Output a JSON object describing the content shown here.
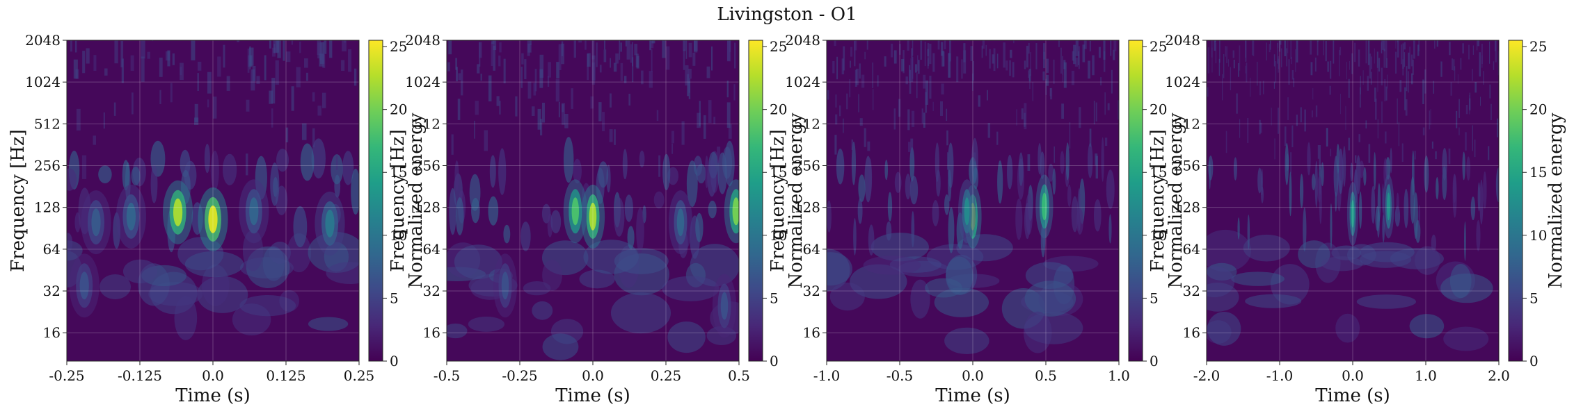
{
  "figure": {
    "title": "Livingston - O1"
  },
  "colormap": {
    "name": "viridis",
    "stops": [
      "#440154",
      "#482878",
      "#3e4a89",
      "#31688e",
      "#26828e",
      "#1f9e89",
      "#35b779",
      "#6ece58",
      "#b5de2b",
      "#fde725"
    ]
  },
  "chart_data": [
    {
      "type": "heatmap",
      "panel": 1,
      "xlabel": "Time (s)",
      "ylabel": "Frequency [Hz]",
      "colorbar_label": "Normalized energy",
      "xlim": [
        -0.25,
        0.25
      ],
      "xticks": [
        -0.25,
        -0.125,
        0,
        0.125,
        0.25
      ],
      "xtick_labels": [
        "-0.25",
        "-0.125",
        "0.0",
        "0.125",
        "0.25"
      ],
      "yscale": "log2",
      "ylim": [
        10,
        2048
      ],
      "yticks": [
        16,
        32,
        64,
        128,
        256,
        512,
        1024,
        2048
      ],
      "ytick_labels": [
        "16",
        "32",
        "64",
        "128",
        "256",
        "512",
        "1024",
        "2048"
      ],
      "clim": [
        0,
        25.5
      ],
      "cticks": [
        0,
        5,
        10,
        15,
        20,
        25
      ],
      "ctick_labels": [
        "0",
        "5",
        "10",
        "15",
        "20",
        "25"
      ],
      "grid": true,
      "features": [
        {
          "t": 0.0,
          "f": 105,
          "energy": 24
        },
        {
          "t": -0.06,
          "f": 118,
          "energy": 22
        },
        {
          "t": 0.2,
          "f": 98,
          "energy": 10
        },
        {
          "t": -0.14,
          "f": 110,
          "energy": 8
        },
        {
          "t": 0.07,
          "f": 120,
          "energy": 8
        },
        {
          "t": -0.2,
          "f": 100,
          "energy": 7
        },
        {
          "t": -0.22,
          "f": 35,
          "energy": 6
        }
      ]
    },
    {
      "type": "heatmap",
      "panel": 2,
      "xlabel": "Time (s)",
      "ylabel": "Frequency [Hz]",
      "colorbar_label": "Normalized energy",
      "xlim": [
        -0.5,
        0.5
      ],
      "xticks": [
        -0.5,
        -0.25,
        0,
        0.25,
        0.5
      ],
      "xtick_labels": [
        "-0.5",
        "-0.25",
        "0.0",
        "0.25",
        "0.5"
      ],
      "yscale": "log2",
      "ylim": [
        10,
        2048
      ],
      "yticks": [
        16,
        32,
        64,
        128,
        256,
        512,
        1024,
        2048
      ],
      "ytick_labels": [
        "16",
        "32",
        "64",
        "128",
        "256",
        "512",
        "1024",
        "2048"
      ],
      "clim": [
        0,
        25.5
      ],
      "cticks": [
        0,
        5,
        10,
        15,
        20,
        25
      ],
      "ctick_labels": [
        "0",
        "5",
        "10",
        "15",
        "20",
        "25"
      ],
      "grid": true,
      "features": [
        {
          "t": 0.0,
          "f": 110,
          "energy": 22
        },
        {
          "t": -0.06,
          "f": 120,
          "energy": 18
        },
        {
          "t": 0.49,
          "f": 120,
          "energy": 20
        },
        {
          "t": 0.3,
          "f": 100,
          "energy": 8
        },
        {
          "t": -0.3,
          "f": 35,
          "energy": 6
        },
        {
          "t": 0.45,
          "f": 25,
          "energy": 6
        }
      ]
    },
    {
      "type": "heatmap",
      "panel": 3,
      "xlabel": "Time (s)",
      "ylabel": "Frequency [Hz]",
      "colorbar_label": "Normalized energy",
      "xlim": [
        -1.0,
        1.0
      ],
      "xticks": [
        -1.0,
        -0.5,
        0,
        0.5,
        1.0
      ],
      "xtick_labels": [
        "-1.0",
        "-0.5",
        "0.0",
        "0.5",
        "1.0"
      ],
      "yscale": "log2",
      "ylim": [
        10,
        2048
      ],
      "yticks": [
        16,
        32,
        64,
        128,
        256,
        512,
        1024,
        2048
      ],
      "ytick_labels": [
        "16",
        "32",
        "64",
        "128",
        "256",
        "512",
        "1024",
        "2048"
      ],
      "clim": [
        0,
        25.5
      ],
      "cticks": [
        0,
        5,
        10,
        15,
        20,
        25
      ],
      "ctick_labels": [
        "0",
        "5",
        "10",
        "15",
        "20",
        "25"
      ],
      "grid": true,
      "features": [
        {
          "t": 0.0,
          "f": 110,
          "energy": 20
        },
        {
          "t": 0.49,
          "f": 130,
          "energy": 17
        },
        {
          "t": -0.04,
          "f": 120,
          "energy": 12
        }
      ]
    },
    {
      "type": "heatmap",
      "panel": 4,
      "xlabel": "Time (s)",
      "ylabel": "Frequency [Hz]",
      "colorbar_label": "Normalized energy",
      "xlim": [
        -2.0,
        2.0
      ],
      "xticks": [
        -2.0,
        -1.0,
        0,
        1.0,
        2.0
      ],
      "xtick_labels": [
        "-2.0",
        "-1.0",
        "0.0",
        "1.0",
        "2.0"
      ],
      "yscale": "log2",
      "ylim": [
        10,
        2048
      ],
      "yticks": [
        16,
        32,
        64,
        128,
        256,
        512,
        1024,
        2048
      ],
      "ytick_labels": [
        "16",
        "32",
        "64",
        "128",
        "256",
        "512",
        "1024",
        "2048"
      ],
      "clim": [
        0,
        25.5
      ],
      "cticks": [
        0,
        5,
        10,
        15,
        20,
        25
      ],
      "ctick_labels": [
        "0",
        "5",
        "10",
        "15",
        "20",
        "25"
      ],
      "grid": true,
      "features": [
        {
          "t": 0.0,
          "f": 115,
          "energy": 14
        },
        {
          "t": 0.49,
          "f": 130,
          "energy": 13
        }
      ]
    }
  ]
}
